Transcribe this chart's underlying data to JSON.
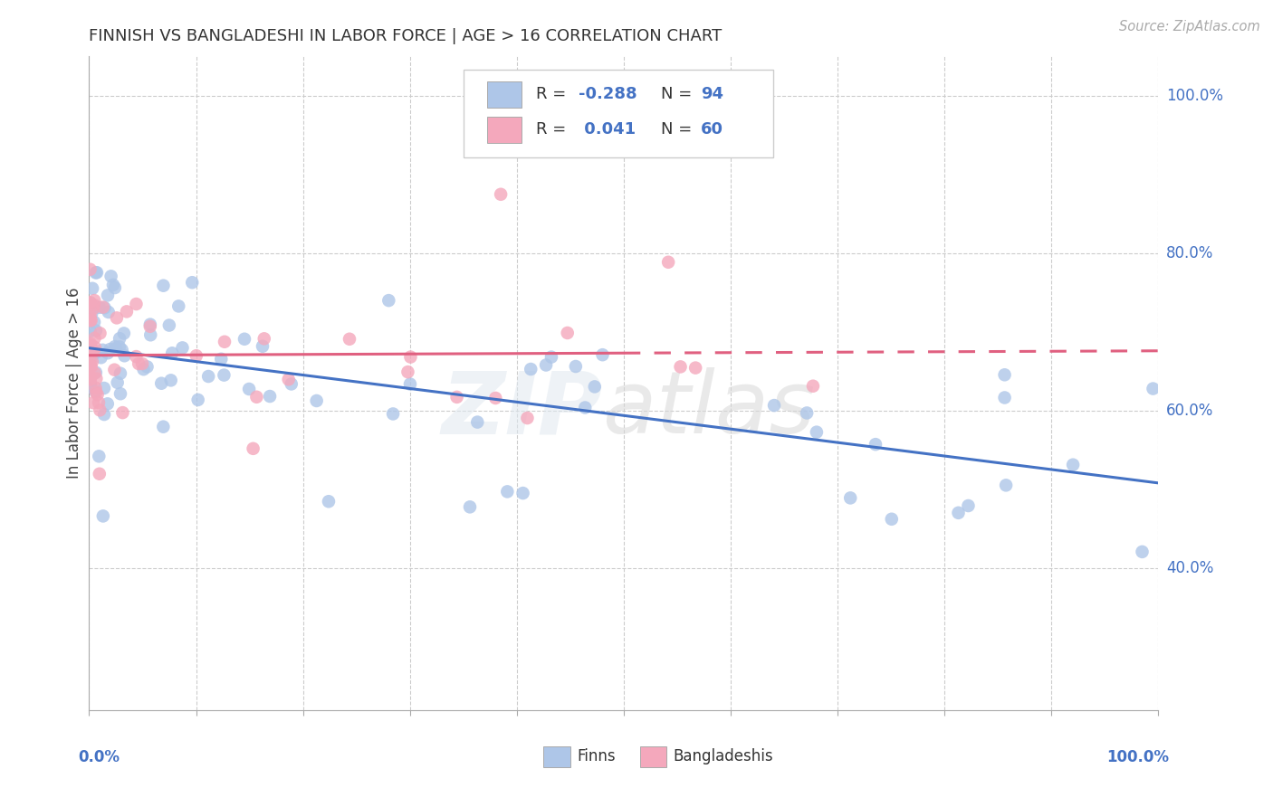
{
  "title": "FINNISH VS BANGLADESHI IN LABOR FORCE | AGE > 16 CORRELATION CHART",
  "source": "Source: ZipAtlas.com",
  "ylabel": "In Labor Force | Age > 16",
  "color_finns": "#aec6e8",
  "color_bangladeshis": "#f4a8bc",
  "color_line_finns": "#4472c4",
  "color_line_bangladeshis": "#e06080",
  "color_text_blue": "#4472c4",
  "xlim": [
    0.0,
    1.0
  ],
  "ylim": [
    0.22,
    1.05
  ],
  "background_color": "#ffffff",
  "grid_color": "#cccccc",
  "yticks": [
    0.4,
    0.6,
    0.8,
    1.0
  ],
  "ytick_labels": [
    "40.0%",
    "60.0%",
    "80.0%",
    "100.0%"
  ]
}
